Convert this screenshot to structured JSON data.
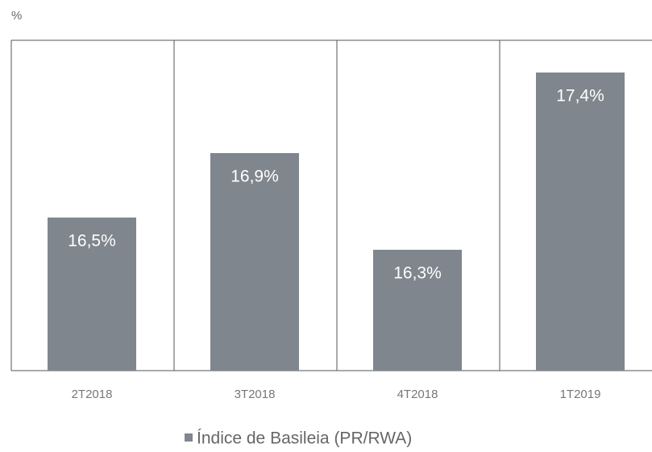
{
  "chart_data": {
    "type": "bar",
    "y_label": "%",
    "categories": [
      "2T2018",
      "3T2018",
      "4T2018",
      "1T2019"
    ],
    "series": [
      {
        "name": "Índice de Basileia (PR/RWA)",
        "color": "#7f868e",
        "values": [
          16.5,
          16.9,
          16.3,
          17.4
        ],
        "value_labels": [
          "16,5%",
          "16,9%",
          "16,3%",
          "17,4%"
        ]
      }
    ],
    "ylim": [
      15.55,
      17.6
    ]
  }
}
